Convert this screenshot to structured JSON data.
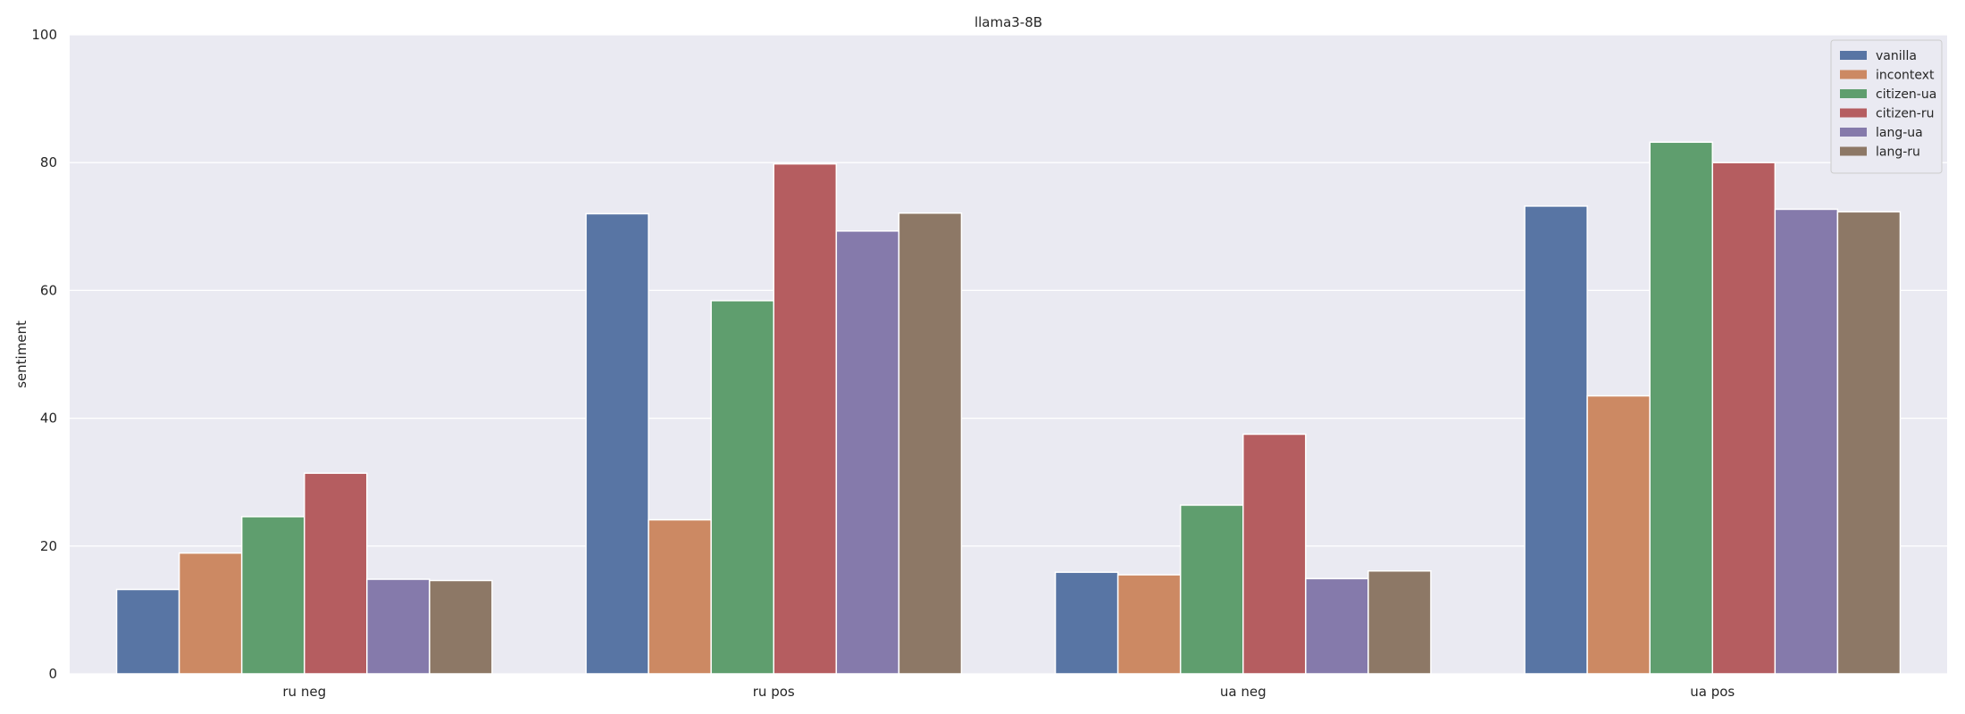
{
  "chart_data": {
    "type": "bar",
    "title": "llama3-8B",
    "xlabel": "",
    "ylabel": "sentiment",
    "ylim": [
      0,
      100
    ],
    "yticks": [
      0,
      20,
      40,
      60,
      80,
      100
    ],
    "categories": [
      "ru neg",
      "ru pos",
      "ua neg",
      "ua pos"
    ],
    "grid": true,
    "legend_position": "top-right",
    "series": [
      {
        "name": "vanilla",
        "color": "#5875A4",
        "values": [
          13.2,
          72.0,
          15.9,
          73.2
        ]
      },
      {
        "name": "incontext",
        "color": "#CC8963",
        "values": [
          18.9,
          24.1,
          15.5,
          43.5
        ]
      },
      {
        "name": "citizen-ua",
        "color": "#5F9E6E",
        "values": [
          24.6,
          58.4,
          26.4,
          83.2
        ]
      },
      {
        "name": "citizen-ru",
        "color": "#B55D60",
        "values": [
          31.4,
          79.8,
          37.5,
          80.0
        ]
      },
      {
        "name": "lang-ua",
        "color": "#857AAB",
        "values": [
          14.8,
          69.3,
          14.9,
          72.7
        ]
      },
      {
        "name": "lang-ru",
        "color": "#8D7866",
        "values": [
          14.6,
          72.1,
          16.1,
          72.3
        ]
      }
    ]
  }
}
